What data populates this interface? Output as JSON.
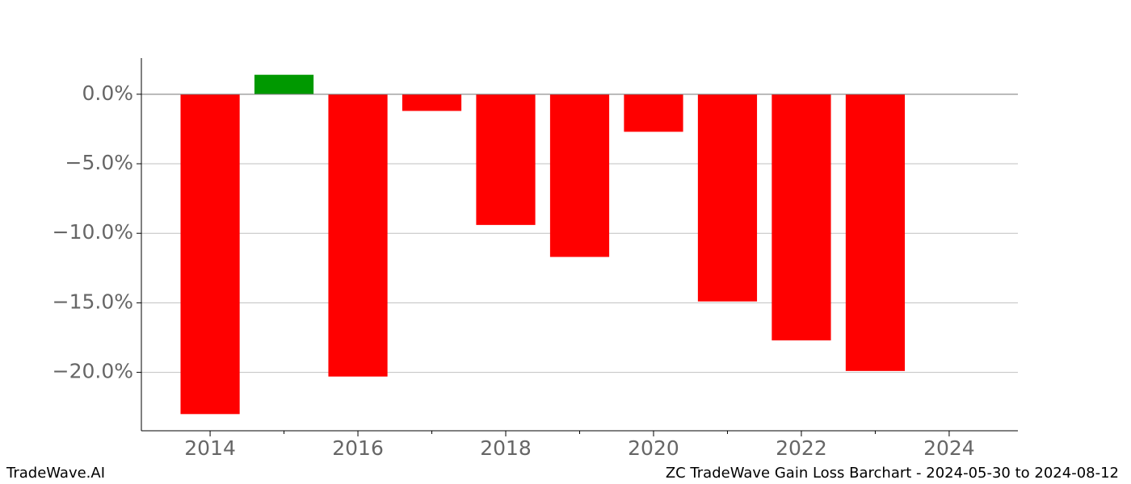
{
  "chart_data": {
    "type": "bar",
    "title": "ZC TradeWave Gain Loss Barchart - 2024-05-30 to 2024-08-12",
    "watermark": "TradeWave.AI",
    "x": [
      2014,
      2015,
      2016,
      2017,
      2018,
      2019,
      2020,
      2021,
      2022,
      2023
    ],
    "values": [
      -23.0,
      1.4,
      -20.3,
      -1.2,
      -9.4,
      -11.7,
      -2.7,
      -14.9,
      -17.7,
      -19.9
    ],
    "color_positive": "#009900",
    "color_negative": "#ff0000",
    "xlim": [
      2013.07,
      2024.93
    ],
    "xticks": [
      2014,
      2016,
      2018,
      2020,
      2022,
      2024
    ],
    "xminorticks": [
      2015,
      2017,
      2019,
      2021,
      2023
    ],
    "ylim": [
      -24.2,
      2.6
    ],
    "yticks": [
      {
        "value": 0,
        "label": "0.0%"
      },
      {
        "value": -5,
        "label": "−5.0%"
      },
      {
        "value": -10,
        "label": "−10.0%"
      },
      {
        "value": -15,
        "label": "−15.0%"
      },
      {
        "value": -20,
        "label": "−20.0%"
      }
    ],
    "grid": true,
    "zero_line": true
  }
}
